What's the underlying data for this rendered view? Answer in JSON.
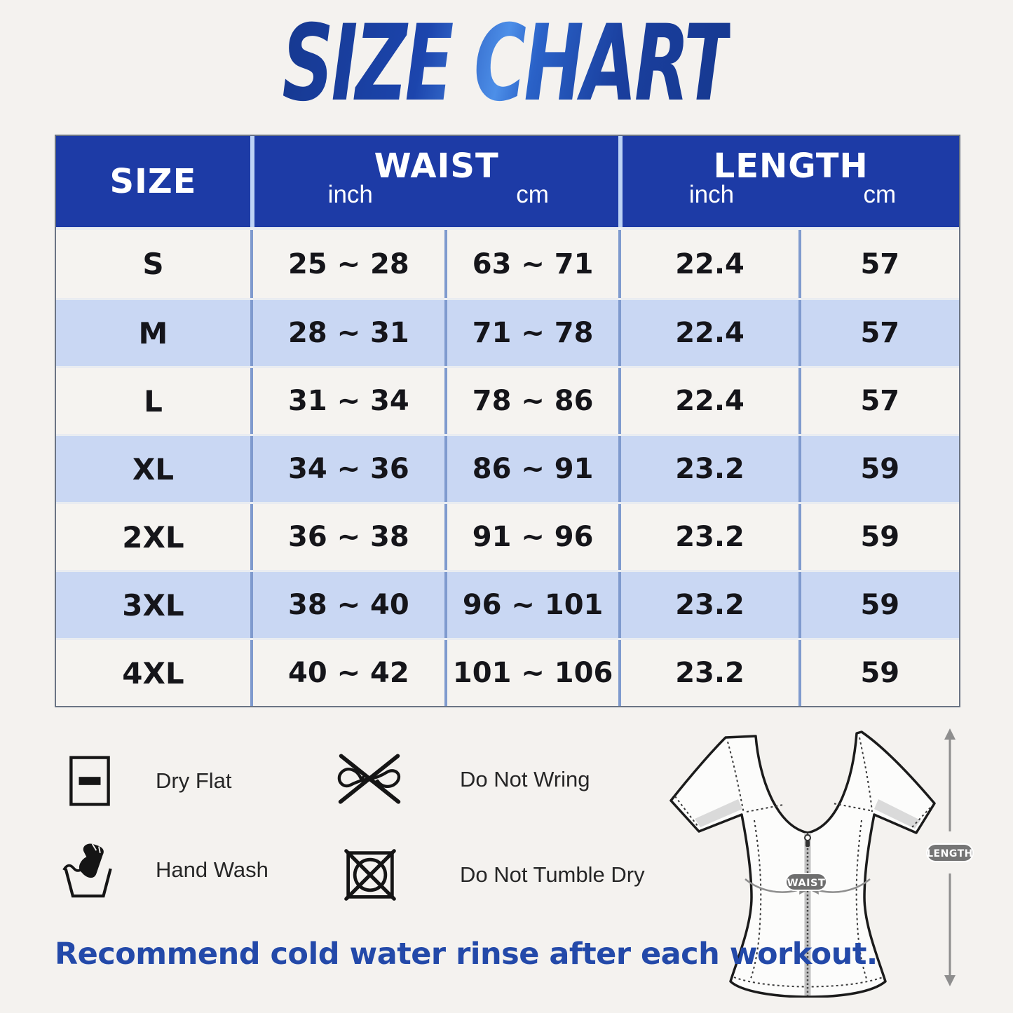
{
  "title": "SIZE CHART",
  "table": {
    "header": {
      "size": "SIZE",
      "waist": "WAIST",
      "length": "LENGTH",
      "waist_unit_inch": "inch",
      "waist_unit_cm": "cm",
      "length_unit_inch": "inch",
      "length_unit_cm": "cm"
    },
    "rows": [
      {
        "size": "S",
        "waist_inch": "25 ~ 28",
        "waist_cm": "63 ~ 71",
        "length_inch": "22.4",
        "length_cm": "57"
      },
      {
        "size": "M",
        "waist_inch": "28 ~ 31",
        "waist_cm": "71 ~ 78",
        "length_inch": "22.4",
        "length_cm": "57"
      },
      {
        "size": "L",
        "waist_inch": "31 ~ 34",
        "waist_cm": "78 ~ 86",
        "length_inch": "22.4",
        "length_cm": "57"
      },
      {
        "size": "XL",
        "waist_inch": "34 ~ 36",
        "waist_cm": "86 ~ 91",
        "length_inch": "23.2",
        "length_cm": "59"
      },
      {
        "size": "2XL",
        "waist_inch": "36 ~ 38",
        "waist_cm": "91 ~ 96",
        "length_inch": "23.2",
        "length_cm": "59"
      },
      {
        "size": "3XL",
        "waist_inch": "38 ~ 40",
        "waist_cm": "96 ~ 101",
        "length_inch": "23.2",
        "length_cm": "59"
      },
      {
        "size": "4XL",
        "waist_inch": "40 ~ 42",
        "waist_cm": "101 ~ 106",
        "length_inch": "23.2",
        "length_cm": "59"
      }
    ]
  },
  "care": {
    "items": [
      {
        "icon": "dry-flat-icon",
        "label": "Dry Flat"
      },
      {
        "icon": "do-not-wring-icon",
        "label": "Do Not Wring"
      },
      {
        "icon": "hand-wash-icon",
        "label": "Hand Wash"
      },
      {
        "icon": "do-not-tumble-dry-icon",
        "label": "Do Not Tumble Dry"
      }
    ]
  },
  "diagram": {
    "waist_label": "WAIST",
    "length_label": "LENGTH"
  },
  "footer": {
    "note": "Recommend cold water rinse after each workout."
  },
  "colors": {
    "header_blue": "#1d3ba6",
    "row_blue": "#c9d7f3",
    "row_light": "#f5f3f0",
    "cell_divider": "#7f9ace",
    "header_divider": "#bdd3f5",
    "accent_blue": "#2349a9",
    "title_dark": "#16388f",
    "title_light": "#4d8fe8",
    "page_bg": "#f4f2ef",
    "pill_gray": "#757575",
    "diagram_gray": "#8e8e8e"
  }
}
